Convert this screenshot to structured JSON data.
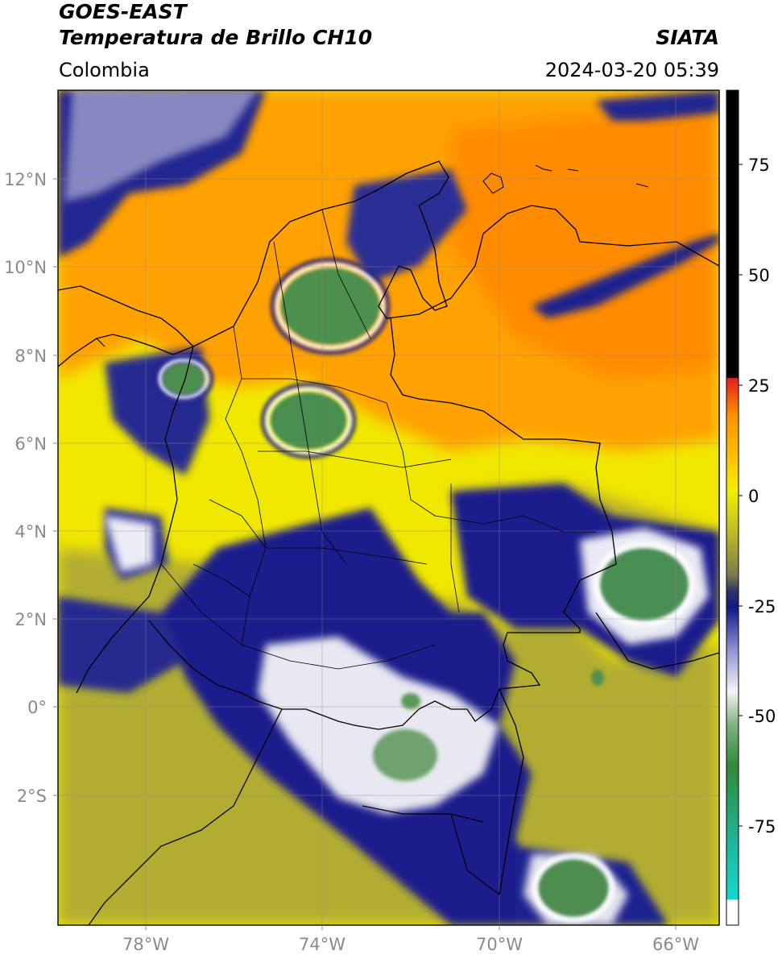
{
  "header": {
    "satellite": "GOES-EAST",
    "product": "Temperatura de Brillo CH10",
    "region": "Colombia",
    "agency": "SIATA",
    "datetime": "2024-03-20 05:39"
  },
  "axes": {
    "latitude_ticks": [
      "12°N",
      "10°N",
      "8°N",
      "6°N",
      "4°N",
      "2°N",
      "0°",
      "2°S"
    ],
    "longitude_ticks": [
      "78°W",
      "74°W",
      "70°W",
      "66°W"
    ],
    "lat_range": [
      -4.5,
      14.0
    ],
    "lon_range": [
      -80.0,
      -65.0
    ]
  },
  "colorbar": {
    "ticks": [
      "75",
      "50",
      "25",
      "0",
      "-25",
      "-50",
      "-75"
    ],
    "range": [
      -100,
      90
    ],
    "colors": {
      "warm_black": "#000000",
      "red": "#e4201a",
      "orange": "#ff9200",
      "yellow": "#f3ee00",
      "olive": "#a8a62c",
      "navy": "#101a86",
      "white": "#ffffff",
      "green": "#2f8a36",
      "cyan": "#14d8d0"
    }
  },
  "map": {
    "background_colors": {
      "orange": "#ffa100",
      "yellow": "#f1e800",
      "olive": "#b2ad30",
      "navy": "#1c1f8c",
      "white": "#f2f2f4",
      "green": "#4e8f4e"
    }
  }
}
